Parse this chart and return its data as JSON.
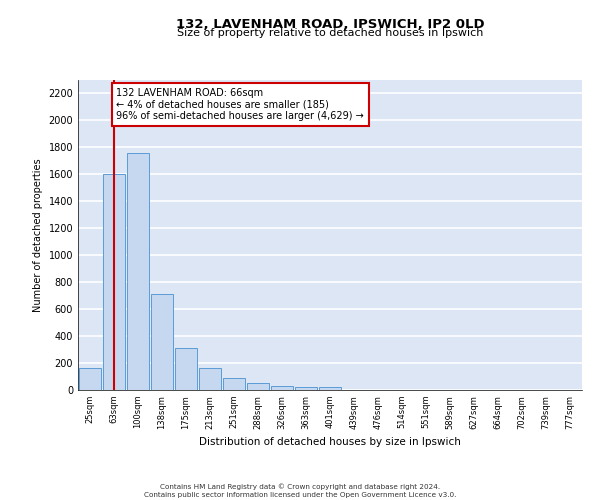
{
  "title1": "132, LAVENHAM ROAD, IPSWICH, IP2 0LD",
  "title2": "Size of property relative to detached houses in Ipswich",
  "xlabel": "Distribution of detached houses by size in Ipswich",
  "ylabel": "Number of detached properties",
  "categories": [
    "25sqm",
    "63sqm",
    "100sqm",
    "138sqm",
    "175sqm",
    "213sqm",
    "251sqm",
    "288sqm",
    "326sqm",
    "363sqm",
    "401sqm",
    "439sqm",
    "476sqm",
    "514sqm",
    "551sqm",
    "589sqm",
    "627sqm",
    "664sqm",
    "702sqm",
    "739sqm",
    "777sqm"
  ],
  "values": [
    160,
    1600,
    1760,
    710,
    315,
    160,
    90,
    50,
    30,
    25,
    20,
    0,
    0,
    0,
    0,
    0,
    0,
    0,
    0,
    0,
    0
  ],
  "bar_color": "#c5d8f0",
  "bar_edge_color": "#5b9bd5",
  "background_color": "#dce6f4",
  "grid_color": "#ffffff",
  "vline_x": 1,
  "vline_color": "#cc0000",
  "annotation_text": "132 LAVENHAM ROAD: 66sqm\n← 4% of detached houses are smaller (185)\n96% of semi-detached houses are larger (4,629) →",
  "annotation_box_facecolor": "#ffffff",
  "annotation_box_edgecolor": "#cc0000",
  "ylim": [
    0,
    2300
  ],
  "yticks": [
    0,
    200,
    400,
    600,
    800,
    1000,
    1200,
    1400,
    1600,
    1800,
    2000,
    2200
  ],
  "footer1": "Contains HM Land Registry data © Crown copyright and database right 2024.",
  "footer2": "Contains public sector information licensed under the Open Government Licence v3.0."
}
